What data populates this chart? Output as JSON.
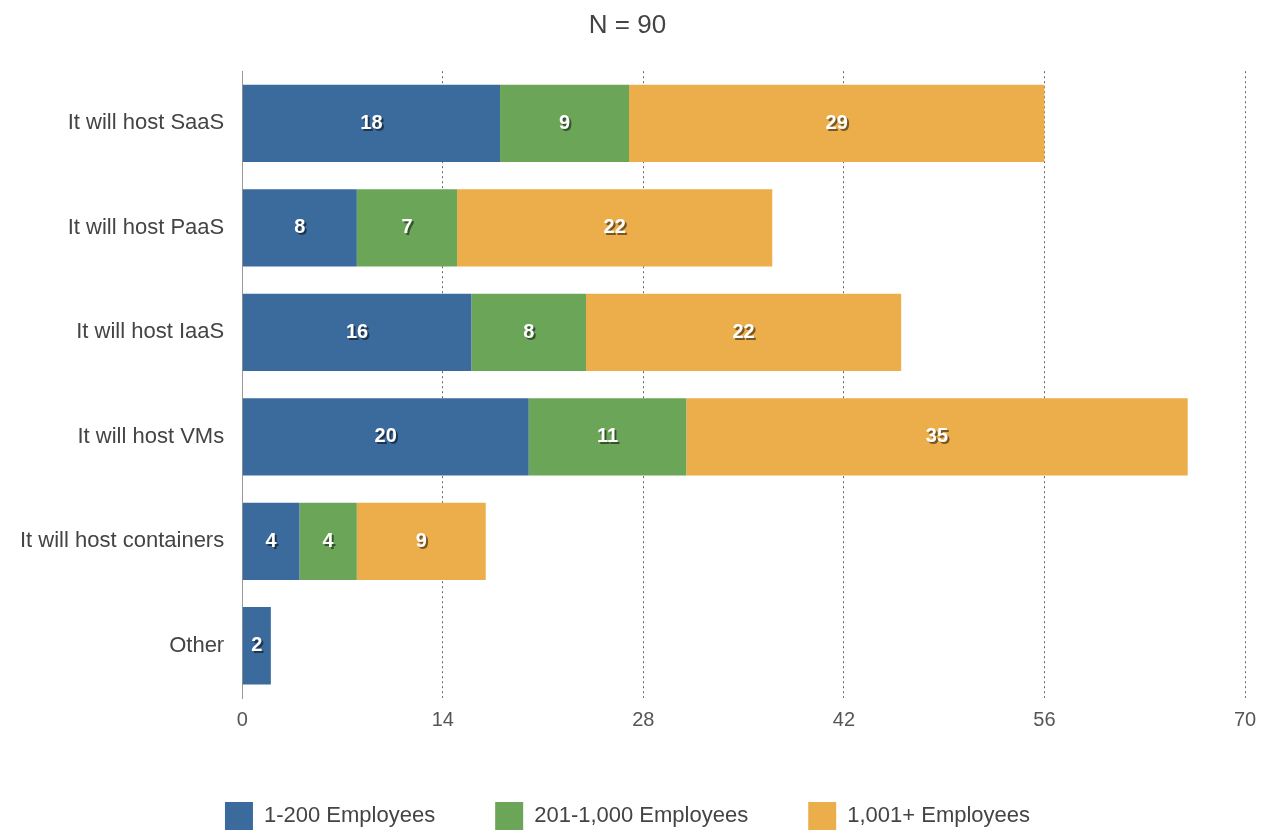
{
  "chart_data": {
    "type": "bar",
    "orientation": "horizontal",
    "stacked": true,
    "title": "N = 90",
    "categories": [
      "It will host SaaS",
      "It will host PaaS",
      "It will host IaaS",
      "It will host VMs",
      "It will host containers",
      "Other"
    ],
    "series": [
      {
        "name": "1-200 Employees",
        "color": "#3b6a9c",
        "values": [
          18,
          8,
          16,
          20,
          4,
          2
        ],
        "value_labels": [
          "18",
          "8",
          "16",
          "20",
          "4",
          "2"
        ]
      },
      {
        "name": "201-1,000 Employees",
        "color": "#6ba557",
        "values": [
          9,
          7,
          8,
          11,
          4,
          0
        ],
        "value_labels": [
          "9",
          "7",
          "8",
          "11",
          "4",
          null
        ]
      },
      {
        "name": "1,001+ Employees",
        "color": "#ecae4b",
        "values": [
          29,
          22,
          22,
          35,
          9,
          0
        ],
        "value_labels": [
          "29",
          "22",
          "22",
          "35",
          "9",
          null
        ]
      }
    ],
    "xlim": [
      0,
      70
    ],
    "xticks": [
      0,
      14,
      28,
      42,
      56,
      70
    ],
    "grid": "x",
    "legend": "bottom"
  }
}
